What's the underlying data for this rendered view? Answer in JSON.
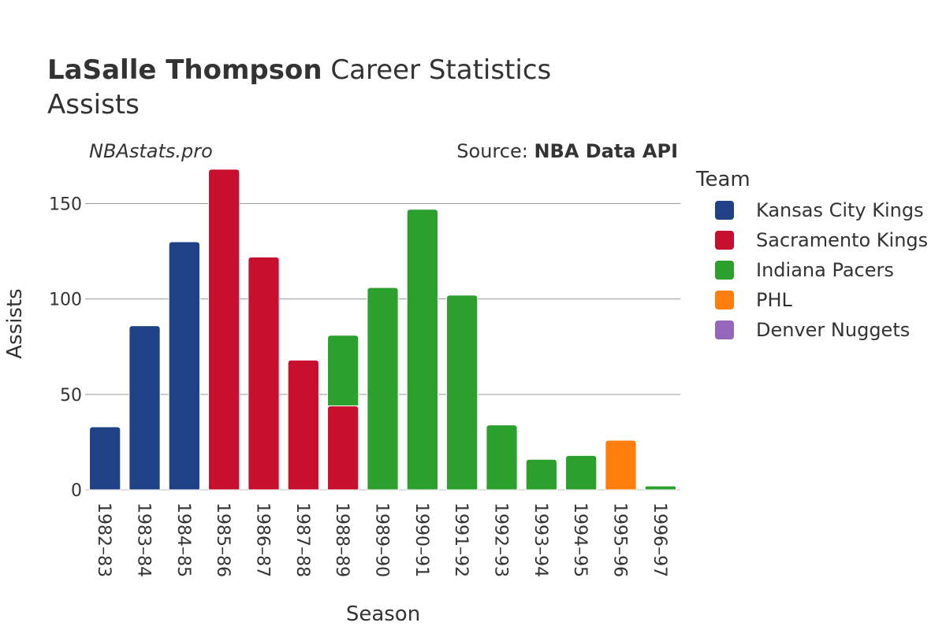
{
  "title": {
    "bold": "LaSalle Thompson",
    "rest": " Career Statistics",
    "subtitle": "Assists"
  },
  "watermark": "NBAstats.pro",
  "source": {
    "prefix": "Source: ",
    "name": "NBA Data API"
  },
  "legend": {
    "title": "Team"
  },
  "chart_data": {
    "type": "bar",
    "stacked": true,
    "xlabel": "Season",
    "ylabel": "Assists",
    "ylim": [
      0,
      170
    ],
    "yticks": [
      0,
      50,
      100,
      150
    ],
    "grid": true,
    "legend_position": "right",
    "categories": [
      "1982–83",
      "1983–84",
      "1984–85",
      "1985–86",
      "1986–87",
      "1987–88",
      "1988–89",
      "1989–90",
      "1990–91",
      "1991–92",
      "1992–93",
      "1993–94",
      "1994–95",
      "1995–96",
      "1996–97"
    ],
    "series": [
      {
        "name": "Kansas City Kings",
        "color": "#1f4287",
        "values": [
          33,
          86,
          130,
          0,
          0,
          0,
          0,
          0,
          0,
          0,
          0,
          0,
          0,
          0,
          0
        ]
      },
      {
        "name": "Sacramento Kings",
        "color": "#c8102e",
        "values": [
          0,
          0,
          0,
          168,
          122,
          68,
          44,
          0,
          0,
          0,
          0,
          0,
          0,
          0,
          0
        ]
      },
      {
        "name": "Indiana Pacers",
        "color": "#2ca02c",
        "values": [
          0,
          0,
          0,
          0,
          0,
          0,
          37,
          106,
          147,
          102,
          34,
          16,
          18,
          0,
          2
        ]
      },
      {
        "name": "PHL",
        "color": "#ff7f0e",
        "values": [
          0,
          0,
          0,
          0,
          0,
          0,
          0,
          0,
          0,
          0,
          0,
          0,
          0,
          26,
          0
        ]
      },
      {
        "name": "Denver Nuggets",
        "color": "#9467bd",
        "values": [
          0,
          0,
          0,
          0,
          0,
          0,
          0,
          0,
          0,
          0,
          0,
          0,
          0,
          0,
          0
        ]
      }
    ]
  }
}
